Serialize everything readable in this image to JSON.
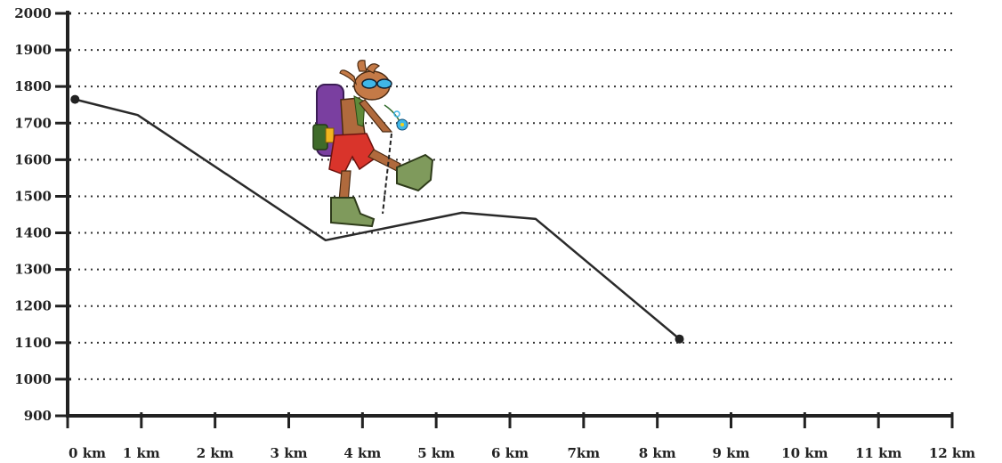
{
  "chart_data": {
    "type": "line",
    "title": "",
    "xlabel": "",
    "ylabel": "",
    "x_tick_labels": [
      "0 km",
      "1 km",
      "2 km",
      "3 km",
      "4 km",
      "5 km",
      "6 km",
      "7km",
      "8 km",
      "9 km",
      "10 km",
      "11 km",
      "12 km"
    ],
    "y_tick_labels": [
      "900",
      "1000",
      "1100",
      "1200",
      "1300",
      "1400",
      "1500",
      "1600",
      "1700",
      "1800",
      "1900",
      "2000"
    ],
    "xlim": [
      0,
      12
    ],
    "ylim": [
      900,
      2000
    ],
    "grid": "horizontal dotted",
    "series": [
      {
        "x": [
          0.1,
          0.95,
          3.5,
          5.35,
          6.35,
          8.3
        ],
        "y": [
          1765,
          1722,
          1380,
          1455,
          1438,
          1110
        ],
        "color": "#2a2a2a",
        "end_markers": true
      }
    ],
    "illustration": "hiker-icon"
  }
}
